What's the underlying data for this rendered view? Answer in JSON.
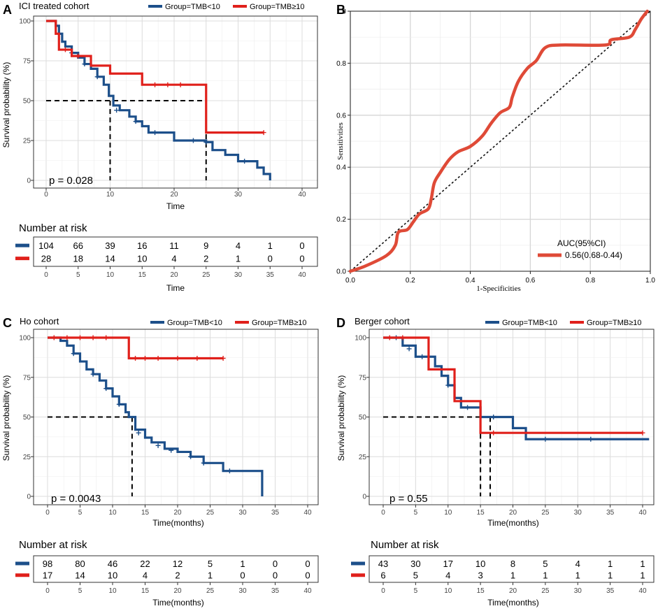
{
  "colors": {
    "low": "#1c4f8a",
    "high": "#e0201b",
    "roc": "#df4a37",
    "grid": "#e3e3e3"
  },
  "panel_labels": [
    "A",
    "B",
    "C",
    "D"
  ],
  "chart_data": [
    {
      "id": "A",
      "type": "line",
      "title": "ICI treated cohort",
      "legend": [
        "Group=TMB<10",
        "Group=TMB≥10"
      ],
      "xlabel": "Time",
      "ylabel": "Survival probability (%)",
      "xlim": [
        0,
        40
      ],
      "ylim": [
        0,
        100
      ],
      "xticks": [
        "0",
        "10",
        "20",
        "30",
        "40"
      ],
      "yticks": [
        "0",
        "25",
        "50",
        "75",
        "100"
      ],
      "p_value": "p = 0.028",
      "median_lines": [
        {
          "x": 10,
          "group": 0
        },
        {
          "x": 25,
          "group": 1
        }
      ],
      "series": [
        {
          "name": "Group=TMB<10",
          "steps": [
            [
              0,
              100
            ],
            [
              1.5,
              97
            ],
            [
              2,
              92
            ],
            [
              2.5,
              87
            ],
            [
              3,
              84
            ],
            [
              4,
              80
            ],
            [
              5,
              77
            ],
            [
              6,
              73
            ],
            [
              7,
              70
            ],
            [
              8,
              65
            ],
            [
              9,
              60
            ],
            [
              9.8,
              53
            ],
            [
              10.5,
              47
            ],
            [
              11.5,
              44
            ],
            [
              13,
              40
            ],
            [
              14,
              37
            ],
            [
              15,
              34
            ],
            [
              16,
              30
            ],
            [
              20,
              25
            ],
            [
              25,
              24
            ],
            [
              26,
              19
            ],
            [
              28,
              16
            ],
            [
              30,
              12
            ],
            [
              33,
              8
            ],
            [
              34,
              4
            ],
            [
              35,
              0
            ]
          ],
          "censors": [
            [
              2,
              92
            ],
            [
              4,
              80
            ],
            [
              6,
              73
            ],
            [
              8,
              65
            ],
            [
              11,
              44
            ],
            [
              14,
              37
            ],
            [
              17,
              30
            ],
            [
              23,
              25
            ],
            [
              25,
              24
            ],
            [
              31,
              12
            ]
          ]
        },
        {
          "name": "Group=TMB≥10",
          "steps": [
            [
              0,
              100
            ],
            [
              1.5,
              92
            ],
            [
              2,
              82
            ],
            [
              4,
              78
            ],
            [
              7,
              72
            ],
            [
              10,
              67
            ],
            [
              15,
              60
            ],
            [
              25,
              30
            ],
            [
              34,
              30
            ]
          ],
          "censors": [
            [
              3,
              82
            ],
            [
              5,
              78
            ],
            [
              17,
              60
            ],
            [
              19,
              60
            ],
            [
              21,
              60
            ],
            [
              34,
              30
            ]
          ]
        }
      ],
      "risk": {
        "title": "Number at risk",
        "xlabel": "Time",
        "ticks": [
          "0",
          "5",
          "10",
          "15",
          "20",
          "25",
          "30",
          "35",
          "40"
        ],
        "rows": [
          [
            "104",
            "66",
            "39",
            "16",
            "11",
            "9",
            "4",
            "1",
            "0"
          ],
          [
            "28",
            "18",
            "14",
            "10",
            "4",
            "2",
            "1",
            "0",
            "0"
          ]
        ]
      }
    },
    {
      "id": "B",
      "type": "line",
      "title": "",
      "xlabel": "1-Specificities",
      "ylabel": "Sensitivities",
      "xlim": [
        0,
        1
      ],
      "ylim": [
        0,
        1
      ],
      "xticks": [
        "0.0",
        "0.2",
        "0.4",
        "0.6",
        "0.8",
        "1.0"
      ],
      "yticks": [
        "0.0",
        "0.2",
        "0.4",
        "0.6",
        "0.8",
        "1.0"
      ],
      "legend_title": "AUC(95%CI)",
      "legend_entry": "0.56(0.68-0.44)",
      "roc": [
        [
          0,
          0
        ],
        [
          0.05,
          0.02
        ],
        [
          0.12,
          0.06
        ],
        [
          0.15,
          0.1
        ],
        [
          0.16,
          0.15
        ],
        [
          0.19,
          0.16
        ],
        [
          0.21,
          0.19
        ],
        [
          0.23,
          0.22
        ],
        [
          0.26,
          0.24
        ],
        [
          0.27,
          0.28
        ],
        [
          0.28,
          0.34
        ],
        [
          0.3,
          0.38
        ],
        [
          0.33,
          0.43
        ],
        [
          0.36,
          0.46
        ],
        [
          0.4,
          0.48
        ],
        [
          0.44,
          0.52
        ],
        [
          0.47,
          0.57
        ],
        [
          0.5,
          0.61
        ],
        [
          0.53,
          0.63
        ],
        [
          0.54,
          0.67
        ],
        [
          0.56,
          0.73
        ],
        [
          0.59,
          0.78
        ],
        [
          0.62,
          0.81
        ],
        [
          0.65,
          0.86
        ],
        [
          0.7,
          0.87
        ],
        [
          0.85,
          0.87
        ],
        [
          0.87,
          0.89
        ],
        [
          0.93,
          0.9
        ],
        [
          0.95,
          0.93
        ],
        [
          0.97,
          0.97
        ],
        [
          0.99,
          1.0
        ]
      ]
    },
    {
      "id": "C",
      "type": "line",
      "title": "Ho cohort",
      "legend": [
        "Group=TMB<10",
        "Group=TMB≥10"
      ],
      "xlabel": "Time(months)",
      "ylabel": "Survival probability (%)",
      "xlim": [
        0,
        40
      ],
      "ylim": [
        0,
        100
      ],
      "xticks": [
        "0",
        "5",
        "10",
        "15",
        "20",
        "25",
        "30",
        "35",
        "40"
      ],
      "yticks": [
        "0",
        "25",
        "50",
        "75",
        "100"
      ],
      "p_value": "p = 0.0043",
      "median_lines": [
        {
          "x": 13,
          "group": 0
        }
      ],
      "series": [
        {
          "name": "Group=TMB<10",
          "steps": [
            [
              0,
              100
            ],
            [
              2,
              98
            ],
            [
              3,
              95
            ],
            [
              4,
              90
            ],
            [
              5,
              85
            ],
            [
              6,
              80
            ],
            [
              7,
              77
            ],
            [
              8,
              73
            ],
            [
              9,
              68
            ],
            [
              10,
              63
            ],
            [
              11,
              58
            ],
            [
              12,
              53
            ],
            [
              12.5,
              50
            ],
            [
              13.5,
              42
            ],
            [
              15,
              37
            ],
            [
              16,
              34
            ],
            [
              18,
              30
            ],
            [
              20,
              28
            ],
            [
              22,
              25
            ],
            [
              24,
              21
            ],
            [
              27,
              16
            ],
            [
              33,
              0
            ]
          ],
          "censors": [
            [
              4,
              90
            ],
            [
              7,
              77
            ],
            [
              9,
              68
            ],
            [
              11,
              58
            ],
            [
              14,
              40
            ],
            [
              17,
              32
            ],
            [
              19,
              29
            ],
            [
              22,
              25
            ],
            [
              24,
              21
            ],
            [
              28,
              16
            ]
          ]
        },
        {
          "name": "Group=TMB≥10",
          "steps": [
            [
              0,
              100
            ],
            [
              12.5,
              87
            ],
            [
              27,
              87
            ]
          ],
          "censors": [
            [
              1,
              100
            ],
            [
              3,
              100
            ],
            [
              5,
              100
            ],
            [
              7,
              100
            ],
            [
              9,
              100
            ],
            [
              13.5,
              87
            ],
            [
              15,
              87
            ],
            [
              17,
              87
            ],
            [
              20,
              87
            ],
            [
              23,
              87
            ],
            [
              27,
              87
            ]
          ]
        }
      ],
      "risk": {
        "title": "Number at risk",
        "xlabel": "Time(months)",
        "ticks": [
          "0",
          "5",
          "10",
          "15",
          "20",
          "25",
          "30",
          "35",
          "40"
        ],
        "rows": [
          [
            "98",
            "80",
            "46",
            "22",
            "12",
            "5",
            "1",
            "0",
            "0"
          ],
          [
            "17",
            "14",
            "10",
            "4",
            "2",
            "1",
            "0",
            "0",
            "0"
          ]
        ]
      }
    },
    {
      "id": "D",
      "type": "line",
      "title": "Berger cohort",
      "legend": [
        "Group=TMB<10",
        "Group=TMB≥10"
      ],
      "xlabel": "Time(months)",
      "ylabel": "Survival probability (%)",
      "xlim": [
        0,
        40
      ],
      "ylim": [
        0,
        100
      ],
      "xticks": [
        "0",
        "5",
        "10",
        "15",
        "20",
        "25",
        "30",
        "35",
        "40"
      ],
      "yticks": [
        "0",
        "25",
        "50",
        "75",
        "100"
      ],
      "p_value": "p = 0.55",
      "median_lines": [
        {
          "x": 15,
          "group": 1
        },
        {
          "x": 16.5,
          "group": 0
        }
      ],
      "series": [
        {
          "name": "Group=TMB<10",
          "steps": [
            [
              0,
              100
            ],
            [
              3,
              95
            ],
            [
              5,
              88
            ],
            [
              8,
              82
            ],
            [
              9,
              76
            ],
            [
              10,
              70
            ],
            [
              11,
              62
            ],
            [
              12,
              56
            ],
            [
              15,
              50
            ],
            [
              16.5,
              50
            ],
            [
              20,
              43
            ],
            [
              22,
              36
            ],
            [
              41,
              36
            ]
          ],
          "censors": [
            [
              2,
              100
            ],
            [
              4,
              93
            ],
            [
              6,
              88
            ],
            [
              10,
              70
            ],
            [
              13,
              56
            ],
            [
              17,
              50
            ],
            [
              25,
              36
            ],
            [
              32,
              36
            ]
          ]
        },
        {
          "name": "Group=TMB≥10",
          "steps": [
            [
              0,
              100
            ],
            [
              7,
              80
            ],
            [
              11,
              60
            ],
            [
              15,
              40
            ],
            [
              40,
              40
            ]
          ],
          "censors": [
            [
              1,
              100
            ],
            [
              3,
              100
            ],
            [
              17,
              40
            ],
            [
              40,
              40
            ]
          ]
        }
      ],
      "risk": {
        "title": "Number at risk",
        "xlabel": "Time(months)",
        "ticks": [
          "0",
          "5",
          "10",
          "15",
          "20",
          "25",
          "30",
          "35",
          "40"
        ],
        "rows": [
          [
            "43",
            "30",
            "17",
            "10",
            "8",
            "5",
            "4",
            "1",
            "1"
          ],
          [
            "6",
            "5",
            "4",
            "3",
            "1",
            "1",
            "1",
            "1",
            "1"
          ]
        ]
      }
    }
  ]
}
